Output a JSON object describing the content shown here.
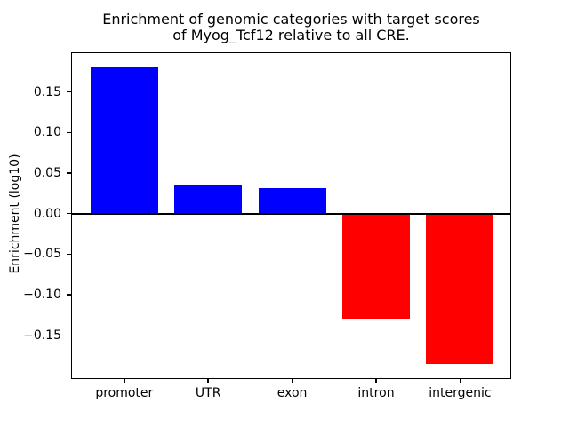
{
  "chart_data": {
    "type": "bar",
    "title": "Enrichment of genomic categories with target scores\nof Myog_Tcf12 relative to all CRE.",
    "xlabel": "",
    "ylabel": "Enrichment (log10)",
    "categories": [
      "promoter",
      "UTR",
      "exon",
      "intron",
      "intergenic"
    ],
    "values": [
      0.182,
      0.036,
      0.031,
      -0.13,
      -0.185
    ],
    "bar_colors": {
      "positive": "#0000ff",
      "negative": "#ff0000"
    },
    "baseline": 0,
    "ylim": [
      -0.204,
      0.199
    ],
    "yticks": [
      {
        "value": 0.15,
        "label": "0.15"
      },
      {
        "value": 0.1,
        "label": "0.10"
      },
      {
        "value": 0.05,
        "label": "0.05"
      },
      {
        "value": 0.0,
        "label": "0.00"
      },
      {
        "value": -0.05,
        "label": "−0.05"
      },
      {
        "value": -0.1,
        "label": "−0.10"
      },
      {
        "value": -0.15,
        "label": "−0.15"
      }
    ],
    "grid": false,
    "legend": "none",
    "axis_color": "#000000",
    "zero_line_color": "#000000",
    "background_color": "#ffffff"
  }
}
